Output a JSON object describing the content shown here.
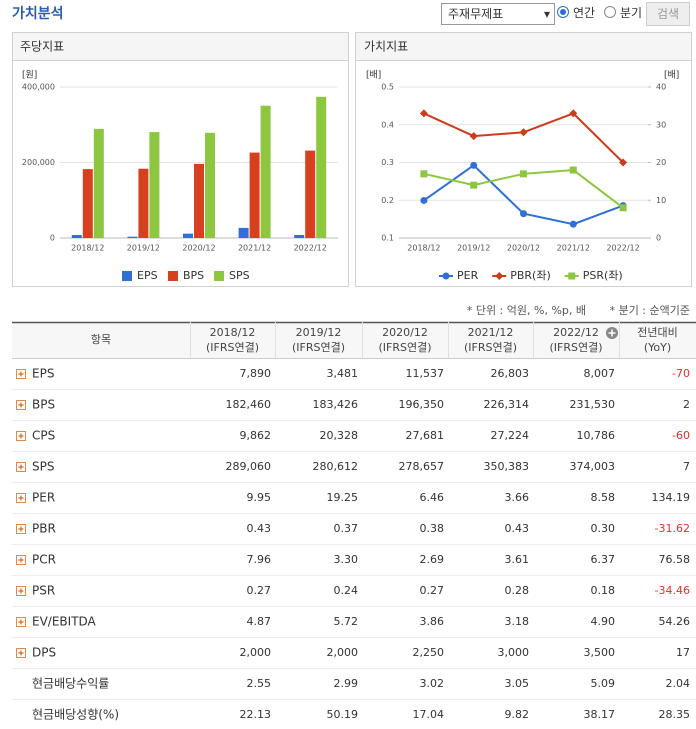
{
  "header": {
    "title": "가치분석",
    "select": "주재무제표",
    "radios": [
      "연간",
      "분기"
    ],
    "button": "검색"
  },
  "chart_data": [
    {
      "type": "bar",
      "title": "주당지표",
      "ylabel": "[원]",
      "categories": [
        "2018/12",
        "2019/12",
        "2020/12",
        "2021/12",
        "2022/12"
      ],
      "series": [
        {
          "name": "EPS",
          "color": "#2f6fd6",
          "values": [
            7890,
            3481,
            11537,
            26803,
            8007
          ]
        },
        {
          "name": "BPS",
          "color": "#d7401f",
          "values": [
            182460,
            183426,
            196350,
            226314,
            231530
          ]
        },
        {
          "name": "SPS",
          "color": "#8dc63f",
          "values": [
            289060,
            280612,
            278657,
            350383,
            374003
          ]
        }
      ],
      "ylim": [
        0,
        400000
      ],
      "yticks": [
        0,
        {
          "value": 200000,
          "label": "200,000"
        },
        {
          "value": 400000,
          "label": "400,000"
        }
      ],
      "grid": true
    },
    {
      "type": "line",
      "title": "가치지표",
      "ylabel": "[배]",
      "y2label": "[배]",
      "categories": [
        "2018/12",
        "2019/12",
        "2020/12",
        "2021/12",
        "2022/12"
      ],
      "series": [
        {
          "name": "PER",
          "color": "#2f6fd6",
          "marker": "circle",
          "axis": "y2",
          "values": [
            9.95,
            19.25,
            6.46,
            3.66,
            8.58
          ]
        },
        {
          "name": "PBR(좌)",
          "color": "#cc3b1a",
          "marker": "diamond",
          "values": [
            0.43,
            0.37,
            0.38,
            0.43,
            0.3
          ]
        },
        {
          "name": "PSR(좌)",
          "color": "#8dc63f",
          "marker": "square",
          "values": [
            0.27,
            0.24,
            0.27,
            0.28,
            0.18
          ]
        }
      ],
      "ylim": [
        0.1,
        0.5
      ],
      "yticks": [
        0.1,
        0.2,
        0.3,
        0.4,
        0.5
      ],
      "y2lim": [
        0,
        40
      ],
      "y2ticks": [
        0,
        10,
        20,
        30,
        40
      ],
      "grid": true
    }
  ],
  "notes": [
    "* 단위 : 억원, %, %p, 배",
    "* 분기 : 순액기준"
  ],
  "table": {
    "columns": [
      [
        "항목"
      ],
      [
        "2018/12",
        "(IFRS연결)"
      ],
      [
        "2019/12",
        "(IFRS연결)"
      ],
      [
        "2020/12",
        "(IFRS연결)"
      ],
      [
        "2021/12",
        "(IFRS연결)"
      ],
      [
        "2022/12",
        "(IFRS연결)"
      ],
      [
        "전년대비",
        "(YoY)"
      ]
    ],
    "rows": [
      {
        "label": "EPS",
        "expandable": true,
        "values": [
          "7,890",
          "3,481",
          "11,537",
          "26,803",
          "8,007"
        ],
        "yoy": "-70"
      },
      {
        "label": "BPS",
        "expandable": true,
        "values": [
          "182,460",
          "183,426",
          "196,350",
          "226,314",
          "231,530"
        ],
        "yoy": "2"
      },
      {
        "label": "CPS",
        "expandable": true,
        "values": [
          "9,862",
          "20,328",
          "27,681",
          "27,224",
          "10,786"
        ],
        "yoy": "-60"
      },
      {
        "label": "SPS",
        "expandable": true,
        "values": [
          "289,060",
          "280,612",
          "278,657",
          "350,383",
          "374,003"
        ],
        "yoy": "7"
      },
      {
        "label": "PER",
        "expandable": true,
        "values": [
          "9.95",
          "19.25",
          "6.46",
          "3.66",
          "8.58"
        ],
        "yoy": "134.19"
      },
      {
        "label": "PBR",
        "expandable": true,
        "values": [
          "0.43",
          "0.37",
          "0.38",
          "0.43",
          "0.30"
        ],
        "yoy": "-31.62"
      },
      {
        "label": "PCR",
        "expandable": true,
        "values": [
          "7.96",
          "3.30",
          "2.69",
          "3.61",
          "6.37"
        ],
        "yoy": "76.58"
      },
      {
        "label": "PSR",
        "expandable": true,
        "values": [
          "0.27",
          "0.24",
          "0.27",
          "0.28",
          "0.18"
        ],
        "yoy": "-34.46"
      },
      {
        "label": "EV/EBITDA",
        "expandable": true,
        "values": [
          "4.87",
          "5.72",
          "3.86",
          "3.18",
          "4.90"
        ],
        "yoy": "54.26"
      },
      {
        "label": "DPS",
        "expandable": true,
        "values": [
          "2,000",
          "2,000",
          "2,250",
          "3,000",
          "3,500"
        ],
        "yoy": "17"
      },
      {
        "label": "현금배당수익률",
        "expandable": false,
        "values": [
          "2.55",
          "2.99",
          "3.02",
          "3.05",
          "5.09"
        ],
        "yoy": "2.04"
      },
      {
        "label": "현금배당성향(%)",
        "expandable": false,
        "values": [
          "22.13",
          "50.19",
          "17.04",
          "9.82",
          "38.17"
        ],
        "yoy": "28.35"
      }
    ]
  }
}
